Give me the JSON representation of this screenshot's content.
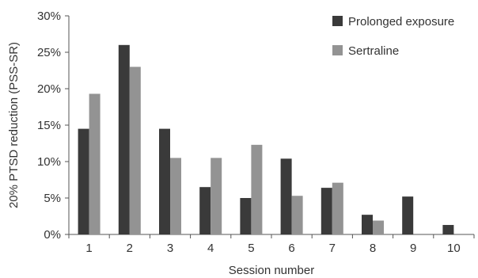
{
  "chart_data": {
    "type": "bar",
    "xlabel": "Session number",
    "ylabel": "20% PTSD reduction (PSS-SR)",
    "categories": [
      "1",
      "2",
      "3",
      "4",
      "5",
      "6",
      "7",
      "8",
      "9",
      "10"
    ],
    "ylim": [
      0,
      30
    ],
    "yticks": [
      "0%",
      "5%",
      "10%",
      "15%",
      "20%",
      "25%",
      "30%"
    ],
    "grid": false,
    "legend_position": "top-right",
    "series": [
      {
        "name": "Prolonged exposure",
        "color": "#3a3a3a",
        "values": [
          14.5,
          26.0,
          14.5,
          6.5,
          5.0,
          10.4,
          6.4,
          2.7,
          5.2,
          1.3
        ]
      },
      {
        "name": "Sertraline",
        "color": "#939393",
        "values": [
          19.3,
          23.0,
          10.5,
          10.5,
          12.3,
          5.3,
          7.1,
          1.9,
          0,
          0
        ]
      }
    ]
  }
}
